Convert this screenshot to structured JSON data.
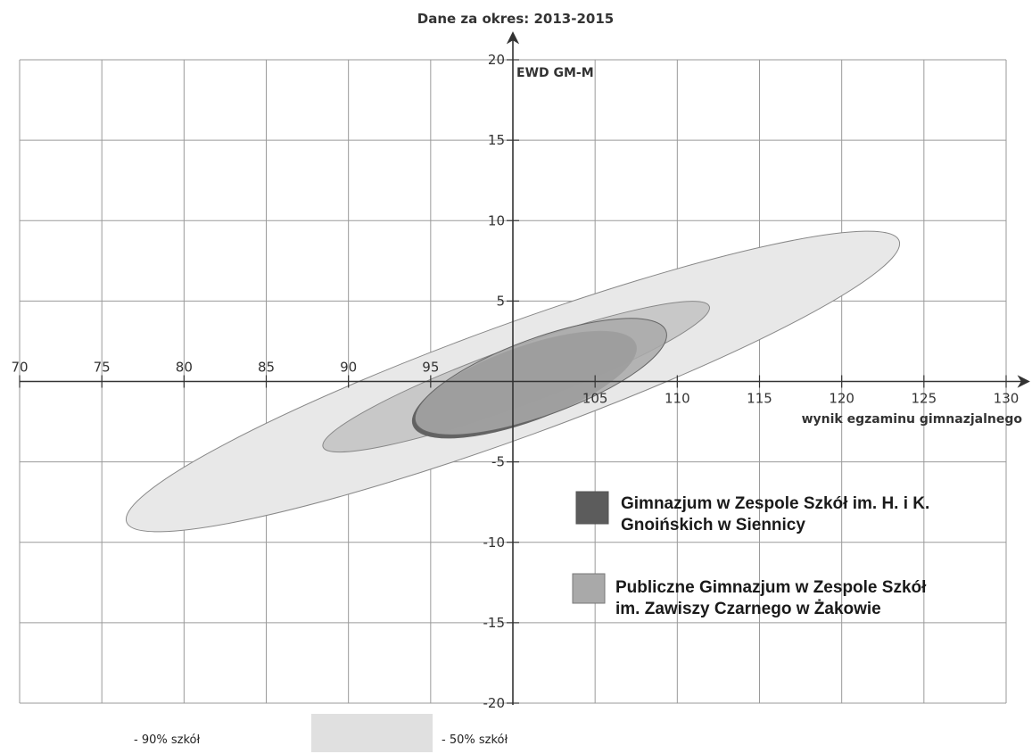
{
  "chart_data": {
    "type": "scatter",
    "title": "Dane za okres: 2013-2015",
    "xlabel": "wynik egzaminu gimnazjalnego",
    "ylabel": "EWD GM-M",
    "xlim": [
      70,
      130
    ],
    "ylim": [
      -20,
      20
    ],
    "x_ticks": [
      70,
      75,
      80,
      85,
      90,
      95,
      105,
      110,
      115,
      120,
      125,
      130
    ],
    "y_ticks": [
      20,
      15,
      10,
      5,
      -5,
      -10,
      -15,
      -20
    ],
    "grid": true,
    "legend_position": "bottom-right",
    "colors": {
      "band90": "#e8e8e8",
      "band50": "#c8c8c8",
      "school1": "#5c5c5c",
      "school2": "#a9a9a9",
      "grid": "#9a9a9a",
      "axis": "#333333"
    },
    "series": [
      {
        "name": "Gimnazjum w Zespole Szkół im. H. i K. Gnoińskich w Siennicy",
        "center": [
          100.7,
          -0.2
        ],
        "spread": [
          7.2,
          2.3
        ],
        "color": "#5c5c5c"
      },
      {
        "name": "Publiczne Gimnazjum w Zespole Szkół im. Zawiszy Czarnego w Żakowie",
        "center": [
          101.7,
          0.3
        ],
        "spread": [
          8.1,
          2.4
        ],
        "color": "#a9a9a9"
      }
    ],
    "bands": [
      {
        "label": "- 90% szkół",
        "center": [
          100,
          0
        ],
        "spread": [
          25,
          3.5
        ],
        "color": "#e8e8e8"
      },
      {
        "label": "- 50% szkół",
        "center": [
          100.2,
          0.3
        ],
        "spread": [
          12.5,
          1.8
        ],
        "color": "#c8c8c8"
      }
    ]
  }
}
